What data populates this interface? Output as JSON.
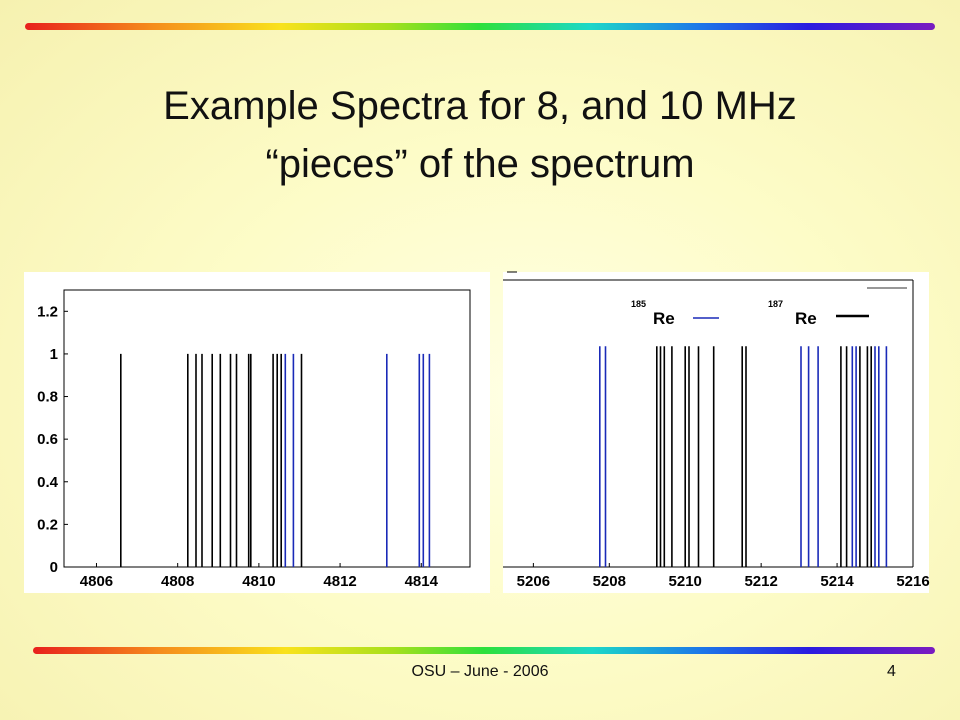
{
  "slide": {
    "title_line1": "Example Spectra for 8, and 10 MHz",
    "title_line2": "“pieces” of the spectrum",
    "footer": "OSU – June - 2006",
    "page_number": "4"
  },
  "colors": {
    "re185": "#1a2ab8",
    "re187": "#000000",
    "rainbow": [
      "#e8201c",
      "#f9e21c",
      "#2ce03c",
      "#1c78e8",
      "#7a1cc0"
    ]
  },
  "chart_data": [
    {
      "type": "bar",
      "subtype": "stick-spectrum",
      "xlim": [
        4805.2,
        4815.2
      ],
      "ylim": [
        0,
        1.3
      ],
      "xticks": [
        "4806",
        "4808",
        "4810",
        "4812",
        "4814"
      ],
      "yticks": [
        "0",
        "0.2",
        "0.4",
        "0.6",
        "0.8",
        "1",
        "1.2"
      ],
      "grid": false,
      "series": [
        {
          "color": "re187",
          "x": [
            4806.6,
            4808.25,
            4808.45,
            4808.6,
            4808.85,
            4809.05,
            4809.3,
            4809.45,
            4809.75,
            4809.8,
            4810.35,
            4810.45,
            4810.55,
            4811.05
          ],
          "values": [
            1,
            1,
            1,
            1,
            1,
            1,
            1,
            1,
            1,
            1,
            1,
            1,
            1,
            1
          ]
        },
        {
          "color": "re185",
          "x": [
            4810.65,
            4810.85,
            4813.15,
            4813.95,
            4814.05,
            4814.2
          ],
          "values": [
            1,
            1,
            1,
            1,
            1,
            1
          ]
        }
      ]
    },
    {
      "type": "bar",
      "subtype": "stick-spectrum",
      "xlim": [
        5205.2,
        5216
      ],
      "ylim": [
        0,
        1.3
      ],
      "xticks": [
        "5206",
        "5208",
        "5210",
        "5212",
        "5214",
        "5216"
      ],
      "grid": false,
      "legend": {
        "placement": "top-right",
        "entries": [
          {
            "sup": "185",
            "label": "Re",
            "color": "re185"
          },
          {
            "sup": "187",
            "label": "Re",
            "color": "re187"
          }
        ]
      },
      "series": [
        {
          "color": "re187",
          "x": [
            5209.25,
            5209.35,
            5209.45,
            5209.65,
            5210.0,
            5210.1,
            5210.35,
            5210.75,
            5211.5,
            5211.6,
            5214.1,
            5214.25,
            5214.6,
            5214.8,
            5214.9
          ],
          "values": [
            1,
            1,
            1,
            1,
            1,
            1,
            1,
            1,
            1,
            1,
            1,
            1,
            1,
            1,
            1
          ]
        },
        {
          "color": "re185",
          "x": [
            5207.75,
            5207.9,
            5213.05,
            5213.25,
            5213.5,
            5214.4,
            5214.5,
            5215.0,
            5215.1,
            5215.3
          ],
          "values": [
            1,
            1,
            1,
            1,
            1,
            1,
            1,
            1,
            1,
            1
          ]
        }
      ]
    }
  ]
}
